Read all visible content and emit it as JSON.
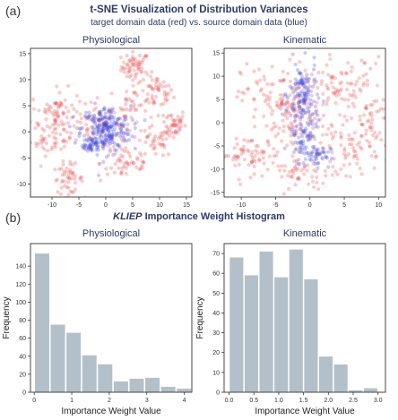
{
  "labels": {
    "a": "(a)",
    "b": "(b)"
  },
  "tsne_title": "t-SNE Visualization of Distribution Variances",
  "tsne_subtitle": "target domain data (red) vs. source domain data (blue)",
  "hist_title_emph": "KLIEP",
  "hist_title_rest": " Importance Weight Histogram",
  "colors": {
    "target": "#e8474c",
    "source": "#3a40e0",
    "bar": "#b3c0c9",
    "title": "#2b3a67"
  },
  "chart_data": [
    {
      "type": "scatter",
      "title": "Physiological",
      "xlim": [
        -14,
        16
      ],
      "ylim": [
        -12.5,
        16
      ],
      "xticks": [
        -10,
        -5,
        0,
        5,
        10,
        15
      ],
      "yticks": [
        -10,
        -5,
        0,
        5,
        10,
        15
      ],
      "series": [
        {
          "name": "target domain data",
          "color": "#e8474c",
          "clusters": [
            {
              "cx": 5.5,
              "cy": 12.5,
              "sx": 1.3,
              "sy": 1.4,
              "n": 60
            },
            {
              "cx": 9.5,
              "cy": 7.5,
              "sx": 1.5,
              "sy": 1.6,
              "n": 50
            },
            {
              "cx": 12.5,
              "cy": 1.5,
              "sx": 1.2,
              "sy": 1.5,
              "n": 45
            },
            {
              "cx": -9,
              "cy": 3.5,
              "sx": 2.5,
              "sy": 2.3,
              "n": 80
            },
            {
              "cx": -10,
              "cy": -1.5,
              "sx": 2,
              "sy": 1.5,
              "n": 40
            },
            {
              "cx": -7,
              "cy": -9,
              "sx": 1.4,
              "sy": 1.4,
              "n": 50
            },
            {
              "cx": 4,
              "cy": -6,
              "sx": 2.5,
              "sy": 1.8,
              "n": 50
            },
            {
              "cx": 9,
              "cy": -2,
              "sx": 1.8,
              "sy": 1.5,
              "n": 40
            },
            {
              "cx": 0,
              "cy": 1,
              "sx": 3.5,
              "sy": 2.6,
              "n": 70
            },
            {
              "cx": 5,
              "cy": 5,
              "sx": 1.8,
              "sy": 1.8,
              "n": 30
            }
          ]
        },
        {
          "name": "source domain data",
          "color": "#3a40e0",
          "clusters": [
            {
              "cx": 0,
              "cy": 0.5,
              "sx": 2.3,
              "sy": 2.2,
              "n": 220
            },
            {
              "cx": -3,
              "cy": -2.5,
              "sx": 1.2,
              "sy": 1.0,
              "n": 40
            }
          ]
        }
      ]
    },
    {
      "type": "scatter",
      "title": "Kinematic",
      "xlim": [
        -12.5,
        11
      ],
      "ylim": [
        -16,
        16
      ],
      "xticks": [
        -10,
        -5,
        0,
        5,
        10
      ],
      "yticks": [
        -15,
        -10,
        -5,
        0,
        5,
        10,
        15
      ],
      "series": [
        {
          "name": "target domain data",
          "color": "#e8474c",
          "clusters": [
            {
              "cx": -5,
              "cy": 5,
              "sx": 2.5,
              "sy": 4,
              "n": 100
            },
            {
              "cx": 5,
              "cy": 7,
              "sx": 3,
              "sy": 3.5,
              "n": 100
            },
            {
              "cx": -9,
              "cy": -7,
              "sx": 2.5,
              "sy": 2,
              "n": 70
            },
            {
              "cx": 6,
              "cy": -6,
              "sx": 3,
              "sy": 2.5,
              "n": 70
            },
            {
              "cx": -1,
              "cy": -11,
              "sx": 2.5,
              "sy": 2,
              "n": 50
            },
            {
              "cx": -2,
              "cy": 0,
              "sx": 2,
              "sy": 4,
              "n": 60
            },
            {
              "cx": 9,
              "cy": 0,
              "sx": 1.5,
              "sy": 3,
              "n": 40
            }
          ]
        },
        {
          "name": "source domain data",
          "color": "#3a40e0",
          "clusters": [
            {
              "cx": -1,
              "cy": 6,
              "sx": 1.0,
              "sy": 3.5,
              "n": 110
            },
            {
              "cx": -1,
              "cy": -2,
              "sx": 1.0,
              "sy": 3,
              "n": 80
            },
            {
              "cx": 1,
              "cy": -7,
              "sx": 1.0,
              "sy": 1.2,
              "n": 40
            }
          ]
        }
      ]
    },
    {
      "type": "bar",
      "title": "Physiological",
      "xlabel": "Importance Weight Value",
      "ylabel": "Frequency",
      "xlim": [
        -0.1,
        4.2
      ],
      "ylim": [
        0,
        165
      ],
      "bin_edges": [
        0,
        0.42,
        0.84,
        1.26,
        1.68,
        2.1,
        2.52,
        2.94,
        3.36,
        3.78,
        4.2
      ],
      "values": [
        154,
        75,
        66,
        41,
        31,
        12,
        15,
        16,
        6,
        4
      ],
      "xticks": [
        0,
        1,
        2,
        3,
        4
      ],
      "yticks": [
        0,
        20,
        40,
        60,
        80,
        100,
        120,
        140
      ]
    },
    {
      "type": "bar",
      "title": "Kinematic",
      "xlabel": "Importance Weight Value",
      "ylabel": "Frequency",
      "xlim": [
        -0.1,
        3.15
      ],
      "ylim": [
        0,
        75
      ],
      "bin_edges": [
        0,
        0.3,
        0.6,
        0.9,
        1.2,
        1.5,
        1.8,
        2.1,
        2.4,
        2.7,
        3.0
      ],
      "values": [
        68,
        59,
        71,
        58,
        72,
        57,
        18,
        14,
        1,
        2
      ],
      "xticks": [
        "0.0",
        "0.5",
        "1.0",
        "1.5",
        "2.0",
        "2.5",
        "3.0"
      ],
      "yticks": [
        0,
        10,
        20,
        30,
        40,
        50,
        60,
        70
      ]
    }
  ]
}
